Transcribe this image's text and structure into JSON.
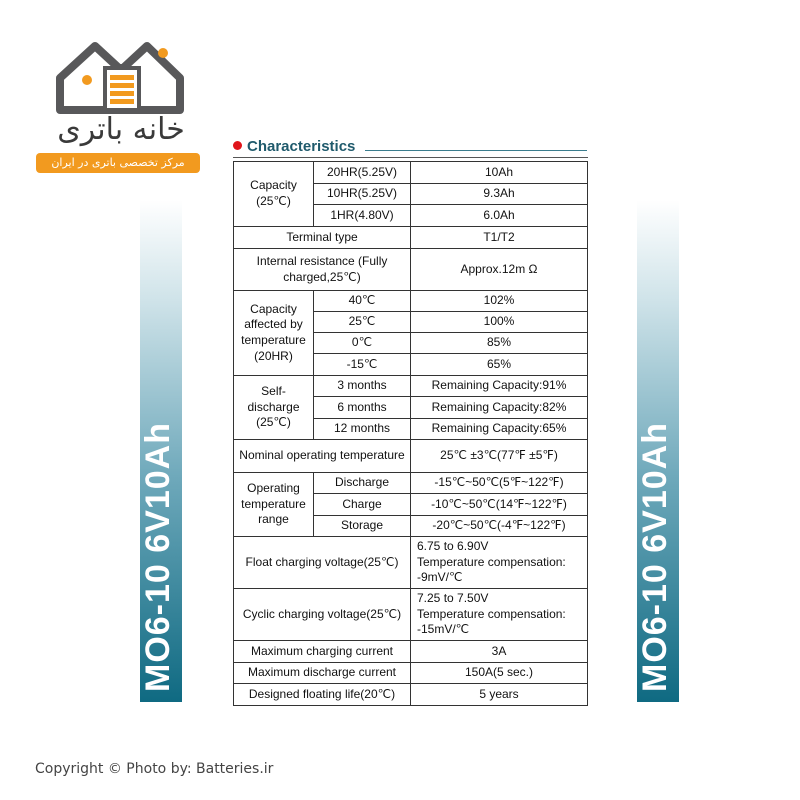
{
  "logo": {
    "name_fa": "خانه باتری",
    "tagline_fa": "مرکز تخصصی باتری در ایران",
    "accent": "#f29a1f"
  },
  "banner_text": "MO6-10  6V10Ah",
  "title": "Characteristics",
  "capacity": {
    "label": "Capacity (25℃)",
    "rows": [
      [
        "20HR(5.25V)",
        "10Ah"
      ],
      [
        "10HR(5.25V)",
        "9.3Ah"
      ],
      [
        "1HR(4.80V)",
        "6.0Ah"
      ]
    ]
  },
  "terminal": [
    "Terminal type",
    "T1/T2"
  ],
  "internal": [
    "Internal resistance (Fully charged,25℃)",
    "Approx.12m Ω"
  ],
  "temp_cap": {
    "label": "Capacity affected by temperature (20HR)",
    "rows": [
      [
        "40℃",
        "102%"
      ],
      [
        "25℃",
        "100%"
      ],
      [
        "0℃",
        "85%"
      ],
      [
        "-15℃",
        "65%"
      ]
    ]
  },
  "self_discharge": {
    "label": "Self-discharge (25℃)",
    "rows": [
      [
        "3 months",
        "Remaining Capacity:91%"
      ],
      [
        "6 months",
        "Remaining Capacity:82%"
      ],
      [
        "12 months",
        "Remaining Capacity:65%"
      ]
    ]
  },
  "nominal": [
    "Nominal operating temperature",
    "25℃ ±3℃(77℉ ±5℉)"
  ],
  "op_range": {
    "label": "Operating temperature range",
    "rows": [
      [
        "Discharge",
        "-15℃~50℃(5℉~122℉)"
      ],
      [
        "Charge",
        "-10℃~50℃(14℉~122℉)"
      ],
      [
        "Storage",
        "-20℃~50℃(-4℉~122℉)"
      ]
    ]
  },
  "float": [
    "Float charging voltage(25℃)",
    "6.75 to 6.90V",
    "Temperature compensation:",
    "-9mV/℃"
  ],
  "cyclic": [
    "Cyclic charging voltage(25℃)",
    "7.25 to 7.50V",
    "Temperature compensation:",
    "-15mV/℃"
  ],
  "max_charge": [
    "Maximum charging current",
    "3A"
  ],
  "max_discharge": [
    "Maximum discharge current",
    "150A(5 sec.)"
  ],
  "life": [
    "Designed floating life(20℃)",
    "5 years"
  ],
  "copyright": "Copyright  © Photo by: Batteries.ir"
}
